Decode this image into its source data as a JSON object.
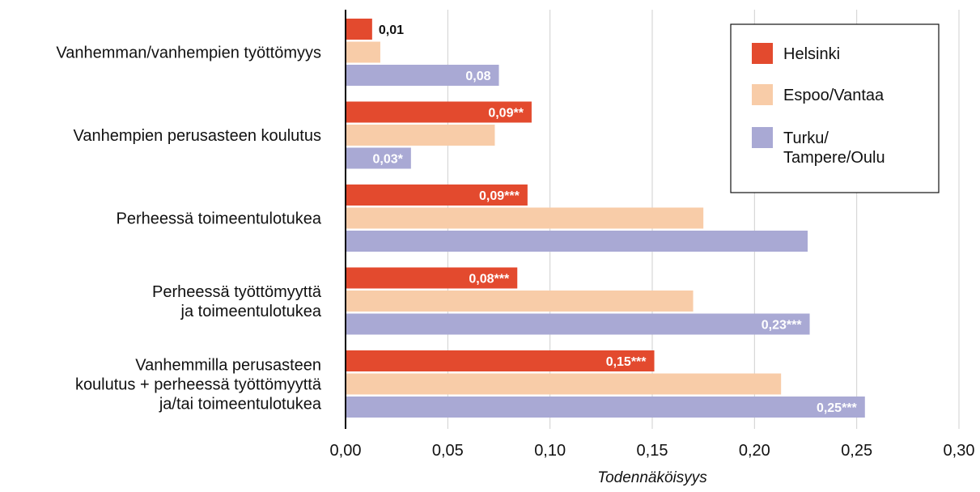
{
  "chart_data": {
    "type": "bar",
    "orientation": "horizontal",
    "title": "",
    "xlabel": "Todennäköisyys",
    "ylabel": "",
    "xlim": [
      0,
      0.3
    ],
    "x_ticks": [
      0.0,
      0.05,
      0.1,
      0.15,
      0.2,
      0.25,
      0.3
    ],
    "x_tick_labels": [
      "0,00",
      "0,05",
      "0,10",
      "0,15",
      "0,20",
      "0,25",
      "0,30"
    ],
    "grid": "vertical",
    "legend_position": "top-right",
    "categories": [
      [
        "Vanhemman/vanhempien työttömyys"
      ],
      [
        "Vanhempien perusasteen koulutus"
      ],
      [
        "Perheessä toimeentulotukea"
      ],
      [
        "Perheessä työttömyyttä",
        "ja toimeentulotukea"
      ],
      [
        "Vanhemmilla perusasteen",
        "koulutus + perheessä työttömyyttä",
        "ja/tai toimeentulotukea"
      ]
    ],
    "series": [
      {
        "name": "Helsinki",
        "color": "#e34a2e",
        "values": [
          0.013,
          0.091,
          0.089,
          0.084,
          0.151
        ],
        "labels": [
          "0,01",
          "0,09**",
          "0,09***",
          "0,08***",
          "0,15***"
        ]
      },
      {
        "name": "Espoo/Vantaa",
        "color": "#f8cca8",
        "values": [
          0.017,
          0.073,
          0.175,
          0.17,
          0.213
        ],
        "labels": [
          "",
          "",
          "",
          "",
          ""
        ]
      },
      {
        "name": "Turku/\nTampere/Oulu",
        "color": "#a9a9d4",
        "values": [
          0.075,
          0.032,
          0.226,
          0.227,
          0.254
        ],
        "labels": [
          "0,08",
          "0,03*",
          "",
          "0,23***",
          "0,25***"
        ]
      }
    ]
  }
}
